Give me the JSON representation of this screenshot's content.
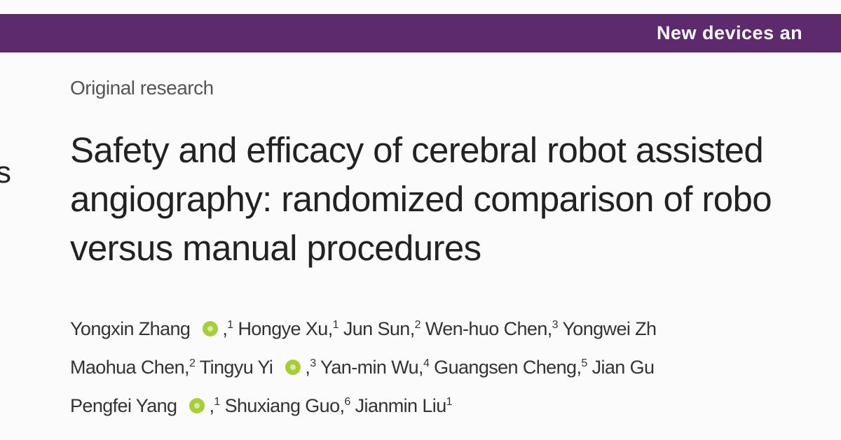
{
  "banner": {
    "text": "New devices an"
  },
  "side_fragment": "s",
  "article_type": "Original research",
  "title_lines": [
    "Safety and efficacy of cerebral robot assisted",
    "angiography: randomized comparison of robo",
    "versus manual procedures"
  ],
  "author_lines": [
    [
      {
        "name": "Yongxin Zhang",
        "orcid": true,
        "suffix": ",",
        "sup": "1"
      },
      {
        "name": "Hongye Xu",
        "suffix": ",",
        "sup": "1"
      },
      {
        "name": "Jun Sun",
        "suffix": ",",
        "sup": "2"
      },
      {
        "name": "Wen-huo Chen",
        "suffix": ",",
        "sup": "3"
      },
      {
        "name": "Yongwei Zh"
      }
    ],
    [
      {
        "name": "Maohua Chen",
        "suffix": ",",
        "sup": "2"
      },
      {
        "name": "Tingyu Yi",
        "orcid": true,
        "suffix": ",",
        "sup": "3"
      },
      {
        "name": "Yan-min Wu",
        "suffix": ",",
        "sup": "4"
      },
      {
        "name": "Guangsen Cheng",
        "suffix": ",",
        "sup": "5"
      },
      {
        "name": "Jian Gu"
      }
    ],
    [
      {
        "name": "Pengfei Yang",
        "orcid": true,
        "suffix": ",",
        "sup": "1"
      },
      {
        "name": "Shuxiang Guo",
        "suffix": ",",
        "sup": "6"
      },
      {
        "name": "Jianmin Liu",
        "sup": "1"
      }
    ]
  ]
}
